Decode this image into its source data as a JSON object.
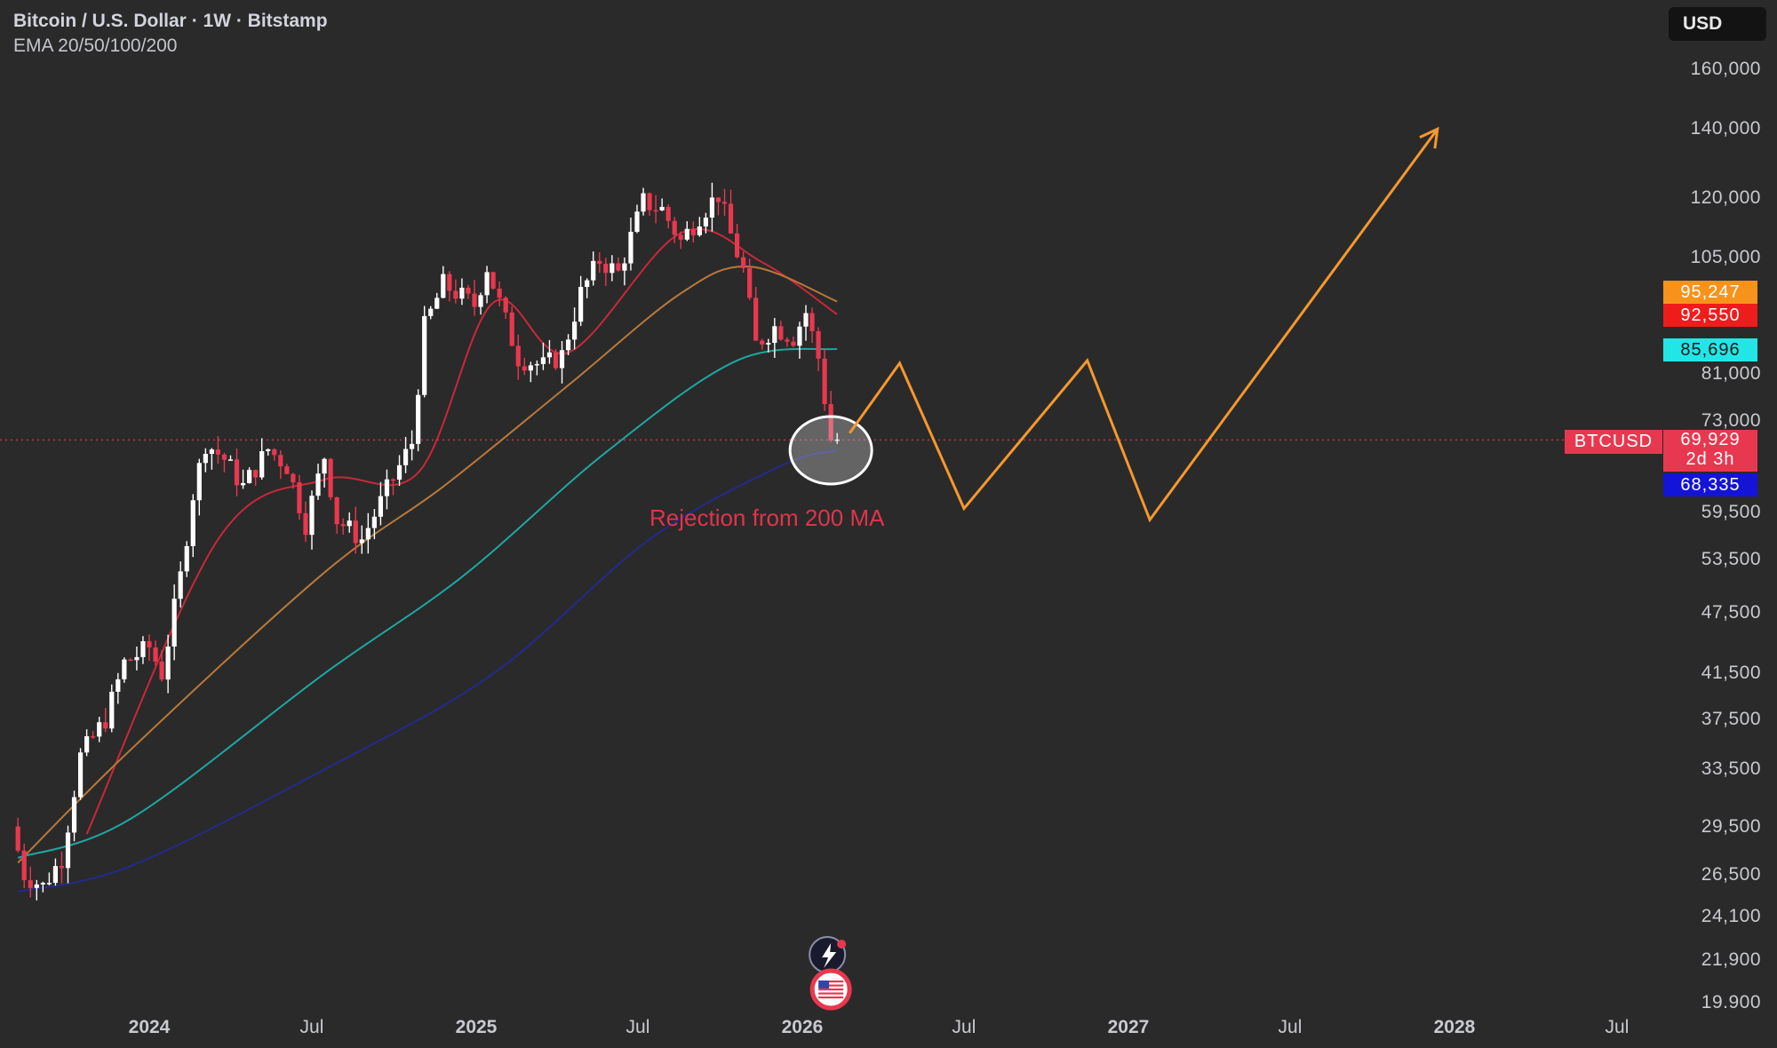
{
  "header": {
    "title": "Bitcoin / U.S. Dollar · 1W · Bitstamp",
    "indicators": "EMA 20/50/100/200"
  },
  "currency_label": "USD",
  "symbol_label": "BTCUSD",
  "price_badges": [
    {
      "text": "95,247",
      "bg": "#f7931a",
      "fg": "#ffffff"
    },
    {
      "text": "92,550",
      "bg": "#ef1c1c",
      "fg": "#ffffff"
    },
    {
      "text": "85,696",
      "bg": "#22e6e6",
      "fg": "#1a1a1a"
    },
    {
      "text": "69,929",
      "bg": "#e8384f",
      "fg": "#ffffff"
    },
    {
      "text": "2d 3h",
      "bg": "#e8384f",
      "fg": "#ffffff"
    },
    {
      "text": "68,335",
      "bg": "#1414d8",
      "fg": "#ffffff"
    }
  ],
  "annotation": "Rejection from 200 MA",
  "colors": {
    "background": "#2a2a2a",
    "up_candle": "#ffffff",
    "down_candle": "#e8384f",
    "ema20": "#c8283a",
    "ema50": "#b9783a",
    "ema100": "#20a6a0",
    "ema200": "#232a8c",
    "projection": "#f5982d",
    "price_line": "#e8384f"
  },
  "icons": [
    "lightning-event-icon",
    "us-flag-event-icon"
  ],
  "chart_data": {
    "type": "candlestick",
    "title": "Bitcoin / U.S. Dollar · 1W · Bitstamp",
    "scale": "log",
    "ylim": [
      19900,
      160000
    ],
    "y_ticks": [
      160000,
      140000,
      120000,
      105000,
      81000,
      73000,
      59500,
      53500,
      47500,
      41500,
      37500,
      33500,
      29500,
      26500,
      24100,
      21900,
      19900
    ],
    "y_tick_labels": [
      "160,000",
      "140,000",
      "120,000",
      "105,000",
      "81,000",
      "73,000",
      "59,500",
      "53,500",
      "47,500",
      "41,500",
      "37,500",
      "33,500",
      "29,500",
      "26,500",
      "24,100",
      "21,900",
      "19.900"
    ],
    "x_ticks": [
      {
        "date": "2024-01-01",
        "label": "2024",
        "year": true
      },
      {
        "date": "2024-07-01",
        "label": "Jul",
        "year": false
      },
      {
        "date": "2025-01-01",
        "label": "2025",
        "year": true
      },
      {
        "date": "2025-07-01",
        "label": "Jul",
        "year": false
      },
      {
        "date": "2026-01-01",
        "label": "2026",
        "year": true
      },
      {
        "date": "2026-07-01",
        "label": "Jul",
        "year": false
      },
      {
        "date": "2027-01-01",
        "label": "2027",
        "year": true
      },
      {
        "date": "2027-07-01",
        "label": "Jul",
        "year": false
      },
      {
        "date": "2028-01-01",
        "label": "2028",
        "year": true
      },
      {
        "date": "2028-07-01",
        "label": "Jul",
        "year": false
      }
    ],
    "price_points": [
      [
        "2023-08-07",
        29500
      ],
      [
        "2023-08-21",
        26500
      ],
      [
        "2023-09-11",
        25800
      ],
      [
        "2023-10-02",
        27500
      ],
      [
        "2023-10-23",
        34500
      ],
      [
        "2023-11-20",
        37500
      ],
      [
        "2023-12-11",
        42500
      ],
      [
        "2024-01-08",
        44000
      ],
      [
        "2024-01-22",
        41500
      ],
      [
        "2024-02-12",
        51500
      ],
      [
        "2024-02-26",
        62000
      ],
      [
        "2024-03-11",
        69500
      ],
      [
        "2024-04-01",
        67000
      ],
      [
        "2024-04-22",
        63000
      ],
      [
        "2024-05-20",
        68500
      ],
      [
        "2024-06-10",
        66000
      ],
      [
        "2024-07-01",
        58000
      ],
      [
        "2024-07-22",
        67500
      ],
      [
        "2024-08-05",
        58500
      ],
      [
        "2024-09-02",
        56000
      ],
      [
        "2024-09-30",
        62500
      ],
      [
        "2024-10-28",
        69500
      ],
      [
        "2024-11-11",
        90000
      ],
      [
        "2024-12-02",
        99000
      ],
      [
        "2025-01-06",
        94500
      ],
      [
        "2025-01-20",
        103000
      ],
      [
        "2025-02-24",
        84000
      ],
      [
        "2025-03-24",
        82500
      ],
      [
        "2025-04-14",
        84500
      ],
      [
        "2025-05-05",
        97000
      ],
      [
        "2025-05-26",
        104500
      ],
      [
        "2025-06-16",
        101500
      ],
      [
        "2025-07-14",
        119000
      ],
      [
        "2025-08-04",
        117000
      ],
      [
        "2025-08-25",
        109000
      ],
      [
        "2025-09-15",
        115500
      ],
      [
        "2025-10-06",
        121000
      ],
      [
        "2025-10-20",
        110500
      ],
      [
        "2025-11-03",
        102000
      ],
      [
        "2025-11-17",
        86500
      ],
      [
        "2025-12-08",
        90000
      ],
      [
        "2025-12-29",
        88000
      ],
      [
        "2026-01-12",
        93000
      ],
      [
        "2026-01-26",
        84000
      ],
      [
        "2026-02-09",
        70000
      ]
    ],
    "ema_series": [
      {
        "name": "EMA 20",
        "points": [
          [
            "2023-10-23",
            29000
          ],
          [
            "2024-03-18",
            56000
          ],
          [
            "2024-07-15",
            64000
          ],
          [
            "2024-10-28",
            65000
          ],
          [
            "2025-01-20",
            95000
          ],
          [
            "2025-04-14",
            85000
          ],
          [
            "2025-08-18",
            111000
          ],
          [
            "2025-11-17",
            104000
          ],
          [
            "2026-02-09",
            92550
          ]
        ]
      },
      {
        "name": "EMA 50",
        "points": [
          [
            "2023-08-07",
            27200
          ],
          [
            "2023-12-11",
            35000
          ],
          [
            "2024-07-15",
            52000
          ],
          [
            "2024-11-25",
            63000
          ],
          [
            "2025-04-14",
            79000
          ],
          [
            "2025-08-18",
            97000
          ],
          [
            "2025-11-03",
            103000
          ],
          [
            "2026-02-09",
            95247
          ]
        ]
      },
      {
        "name": "EMA 100",
        "points": [
          [
            "2023-08-07",
            27500
          ],
          [
            "2023-12-11",
            30000
          ],
          [
            "2024-07-15",
            41500
          ],
          [
            "2024-12-16",
            51500
          ],
          [
            "2025-05-26",
            68000
          ],
          [
            "2025-10-20",
            83500
          ],
          [
            "2026-02-09",
            85696
          ]
        ]
      },
      {
        "name": "EMA 200",
        "points": [
          [
            "2023-08-07",
            25500
          ],
          [
            "2023-12-11",
            27000
          ],
          [
            "2024-07-15",
            33500
          ],
          [
            "2025-01-20",
            41500
          ],
          [
            "2025-07-14",
            56000
          ],
          [
            "2025-12-08",
            66000
          ],
          [
            "2026-02-09",
            68335
          ]
        ]
      }
    ],
    "projection": [
      [
        "2026-02-23",
        71000
      ],
      [
        "2026-04-20",
        83000
      ],
      [
        "2026-07-01",
        60000
      ],
      [
        "2026-11-16",
        83500
      ],
      [
        "2027-01-25",
        58500
      ],
      [
        "2027-12-13",
        140000
      ]
    ],
    "current_price": 69929,
    "highlight_circle": {
      "date": "2026-02-02",
      "price": 68335
    }
  }
}
